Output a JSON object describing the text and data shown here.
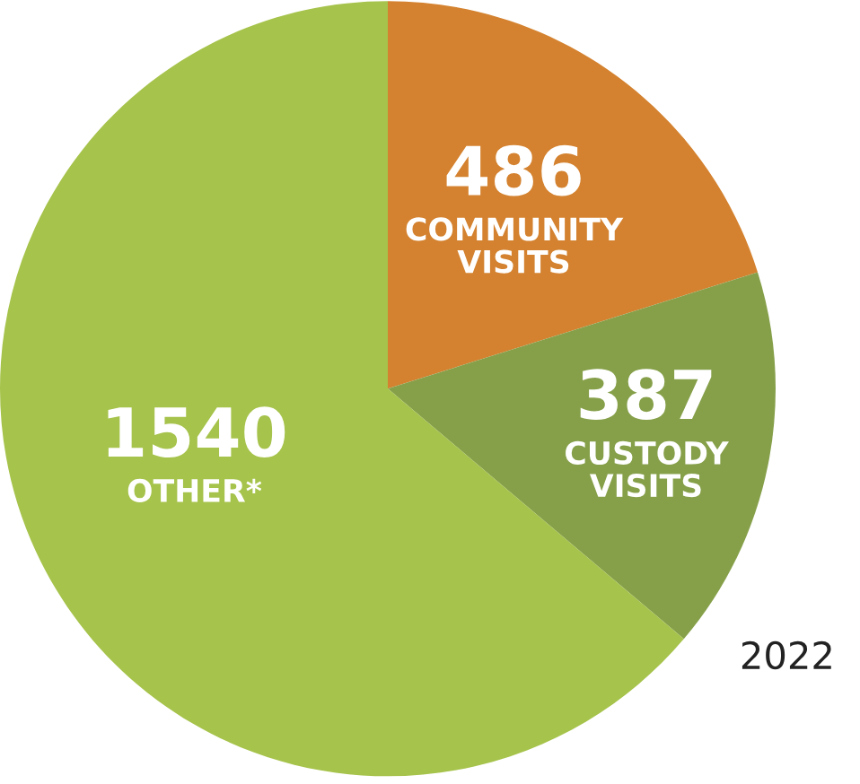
{
  "chart_data": {
    "type": "pie",
    "categories": [
      "COMMUNITY VISITS",
      "CUSTODY VISITS",
      "OTHER*"
    ],
    "values": [
      486,
      387,
      1540
    ],
    "colors": [
      "#d4822f",
      "#86a04a",
      "#a6c34b"
    ],
    "data_labels": true,
    "annotations": [
      "2022"
    ]
  }
}
